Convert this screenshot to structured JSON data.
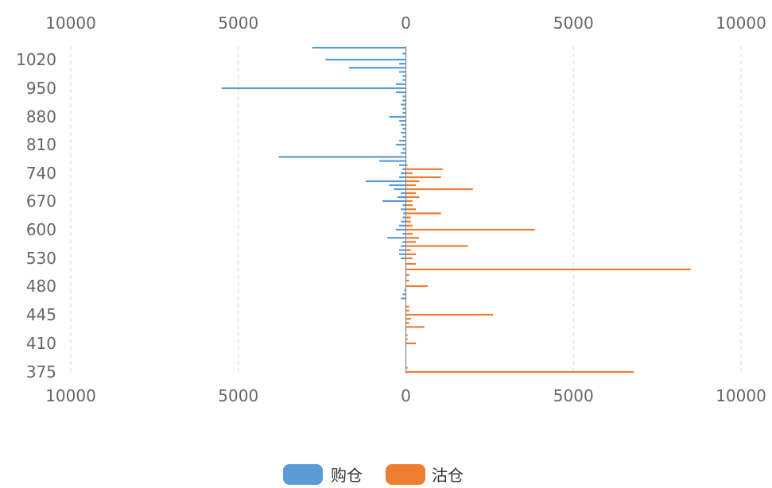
{
  "chart_data": {
    "type": "bar",
    "orientation": "horizontal-diverging",
    "title": "",
    "xlabel": "",
    "ylabel": "",
    "xlim": [
      -10000,
      10000
    ],
    "x_ticks": [
      -10000,
      -5000,
      0,
      5000,
      10000
    ],
    "x_tick_labels": [
      "10000",
      "5000",
      "0",
      "5000",
      "10000"
    ],
    "y_tick_labels": [
      "1020",
      "950",
      "880",
      "810",
      "740",
      "670",
      "600",
      "530",
      "480",
      "445",
      "410",
      "375"
    ],
    "grid": true,
    "legend_position": "bottom-center",
    "colors": {
      "series_left": "#5b9bd5",
      "series_right": "#ed7d31",
      "grid": "#d9d9d9",
      "axis": "#888888",
      "tick_text": "#666666"
    },
    "categories": [
      375,
      380,
      385,
      390,
      395,
      400,
      405,
      410,
      415,
      420,
      425,
      430,
      435,
      440,
      445,
      450,
      455,
      460,
      465,
      470,
      475,
      480,
      490,
      500,
      510,
      520,
      530,
      540,
      550,
      560,
      570,
      580,
      590,
      600,
      610,
      620,
      630,
      640,
      650,
      660,
      670,
      680,
      690,
      700,
      710,
      720,
      730,
      740,
      750,
      760,
      770,
      780,
      790,
      800,
      810,
      820,
      830,
      840,
      850,
      860,
      870,
      880,
      890,
      900,
      910,
      920,
      930,
      940,
      950,
      960,
      970,
      980,
      990,
      1000,
      1010,
      1020,
      1030,
      1040
    ],
    "series": [
      {
        "name": "购仓",
        "side": "left",
        "values": [
          0,
          0,
          0,
          0,
          0,
          0,
          0,
          0,
          0,
          0,
          0,
          0,
          0,
          0,
          0,
          0,
          0,
          0,
          150,
          100,
          50,
          0,
          0,
          0,
          0,
          0,
          150,
          200,
          200,
          150,
          100,
          550,
          100,
          300,
          200,
          150,
          100,
          80,
          150,
          100,
          700,
          250,
          150,
          350,
          500,
          1200,
          200,
          150,
          100,
          200,
          800,
          3800,
          150,
          100,
          300,
          200,
          100,
          150,
          100,
          150,
          200,
          500,
          100,
          100,
          150,
          100,
          100,
          300,
          5500,
          300,
          100,
          100,
          200,
          1700,
          200,
          2400,
          100,
          2800
        ]
      },
      {
        "name": "沽仓",
        "side": "right",
        "values": [
          6800,
          50,
          0,
          0,
          0,
          0,
          0,
          300,
          50,
          50,
          0,
          550,
          100,
          150,
          2600,
          100,
          100,
          0,
          0,
          0,
          0,
          650,
          100,
          100,
          8500,
          300,
          200,
          300,
          150,
          1850,
          300,
          400,
          200,
          3850,
          200,
          150,
          150,
          1050,
          300,
          200,
          200,
          400,
          300,
          2000,
          300,
          400,
          1050,
          200,
          1100,
          50,
          0,
          0,
          0,
          0,
          0,
          0,
          0,
          0,
          0,
          0,
          0,
          0,
          0,
          0,
          0,
          0,
          0,
          0,
          0,
          0,
          0,
          0,
          0,
          0,
          0,
          0,
          0,
          0
        ]
      }
    ]
  },
  "legend": {
    "items": [
      {
        "label": "购仓",
        "color": "#5b9bd5"
      },
      {
        "label": "沽仓",
        "color": "#ed7d31"
      }
    ]
  }
}
